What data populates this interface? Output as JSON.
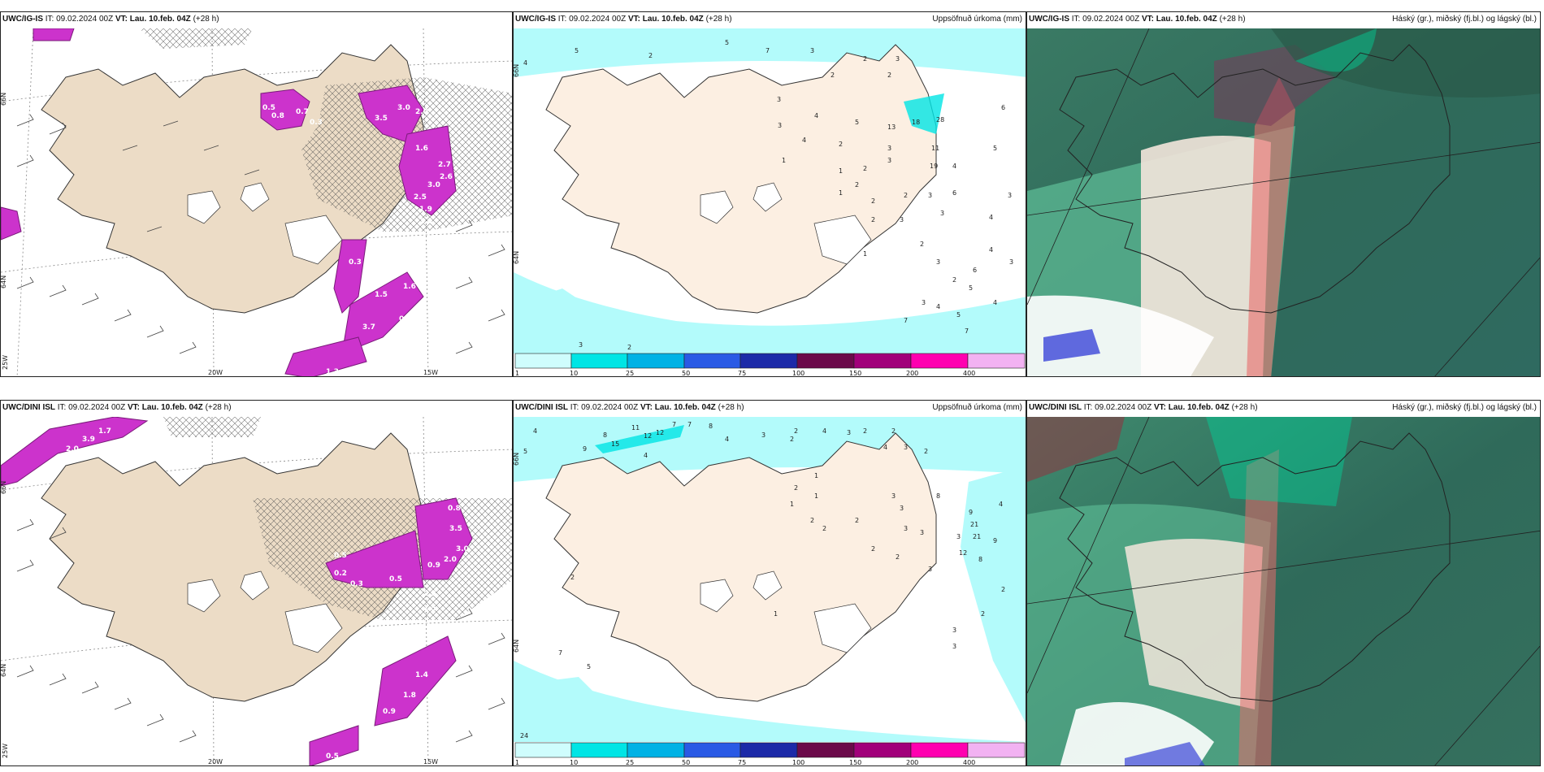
{
  "rows": [
    {
      "model": "UWC/IG-IS",
      "panels": [
        {
          "kind": "precip-type",
          "header": {
            "model": "UWC/IG-IS",
            "it_label": "IT:",
            "it_value": "09.02.2024 00Z",
            "vt_label": "VT:",
            "vt_value": "Lau. 10.feb. 04Z",
            "lead": "(+28 h)"
          },
          "right_title": "",
          "lat_labels": [
            "66N",
            "64N"
          ],
          "lon_labels": [
            "20W",
            "15W",
            "25W"
          ],
          "value_labels": [
            "0.5",
            "0.8",
            "0.7",
            "0.3",
            "3.0",
            "3.5",
            "2.0",
            "1.6",
            "2.7",
            "2.6",
            "3.0",
            "2.5",
            "1.9",
            "1.6",
            "0.3",
            "1.5",
            "1.6",
            "3.7",
            "0.2",
            "1.3"
          ]
        },
        {
          "kind": "accum-precip",
          "header": {
            "model": "UWC/IG-IS",
            "it_label": "IT:",
            "it_value": "09.02.2024 00Z",
            "vt_label": "VT:",
            "vt_value": "Lau. 10.feb. 04Z",
            "lead": "(+28 h)"
          },
          "right_title": "Uppsöfnuð úrkoma (mm)",
          "lat_labels": [
            "66N",
            "64N"
          ],
          "station_values": [
            "5",
            "2",
            "5",
            "7",
            "3",
            "2",
            "3",
            "4",
            "2",
            "2",
            "6",
            "3",
            "4",
            "3",
            "5",
            "13",
            "18",
            "28",
            "4",
            "2",
            "3",
            "1",
            "1",
            "2",
            "3",
            "11",
            "5",
            "2",
            "1",
            "2",
            "2",
            "3",
            "6",
            "19",
            "4",
            "3",
            "2",
            "3",
            "3",
            "4",
            "2",
            "4",
            "3",
            "1",
            "3",
            "2",
            "5",
            "6",
            "4",
            "3",
            "4",
            "5",
            "7",
            "7",
            "3",
            "2"
          ],
          "colorbar": {
            "ticks": [
              "1",
              "10",
              "25",
              "50",
              "75",
              "100",
              "150",
              "200",
              "400"
            ],
            "colors": [
              "#cffdfd",
              "#00e5e5",
              "#00b2e5",
              "#2a5ae5",
              "#1c2aa8",
              "#6b0a4a",
              "#a1007a",
              "#ff00b0",
              "#f2b2f2"
            ]
          }
        },
        {
          "kind": "cloud-cover",
          "header": {
            "model": "UWC/IG-IS",
            "it_label": "IT:",
            "it_value": "09.02.2024 00Z",
            "vt_label": "VT:",
            "vt_value": "Lau. 10.feb. 04Z",
            "lead": "(+28 h)"
          },
          "right_title": "Háský (gr.), miðský (fj.bl.) og lágský (bl.)"
        }
      ]
    },
    {
      "model": "UWC/DINI ISL",
      "panels": [
        {
          "kind": "precip-type",
          "header": {
            "model": "UWC/DINI ISL",
            "it_label": "IT:",
            "it_value": "09.02.2024 00Z",
            "vt_label": "VT:",
            "vt_value": "Lau. 10.feb. 04Z",
            "lead": "(+28 h)"
          },
          "right_title": "",
          "lat_labels": [
            "66N",
            "64N"
          ],
          "lon_labels": [
            "20W",
            "15W",
            "25W"
          ],
          "value_labels": [
            "1.7",
            "3.9",
            "2.0",
            "0.5",
            "0.2",
            "0.3",
            "0.5",
            "0.9",
            "2.5",
            "1.5",
            "3.5",
            "3.0",
            "2.0",
            "0.8",
            "1.4",
            "1.8",
            "0.9",
            "0.5"
          ]
        },
        {
          "kind": "accum-precip",
          "header": {
            "model": "UWC/DINI ISL",
            "it_label": "IT:",
            "it_value": "09.02.2024 00Z",
            "vt_label": "VT:",
            "vt_value": "Lau. 10.feb. 04Z",
            "lead": "(+28 h)"
          },
          "right_title": "Uppsöfnuð úrkoma (mm)",
          "lat_labels": [
            "66N",
            "64N"
          ],
          "station_values": [
            "4",
            "5",
            "8",
            "11",
            "7",
            "7",
            "8",
            "9",
            "15",
            "12",
            "12",
            "4",
            "4",
            "3",
            "2",
            "4",
            "3",
            "2",
            "2",
            "2",
            "4",
            "3",
            "2",
            "1",
            "2",
            "1",
            "1",
            "2",
            "2",
            "2",
            "3",
            "3",
            "8",
            "9",
            "4",
            "21",
            "21",
            "9",
            "3",
            "12",
            "8",
            "3",
            "3",
            "2",
            "2",
            "3",
            "2",
            "2",
            "7",
            "5",
            "3",
            "3",
            "24",
            "2",
            "1"
          ],
          "colorbar": {
            "ticks": [
              "1",
              "10",
              "25",
              "50",
              "75",
              "100",
              "150",
              "200",
              "400"
            ],
            "colors": [
              "#cffdfd",
              "#00e5e5",
              "#00b2e5",
              "#2a5ae5",
              "#1c2aa8",
              "#6b0a4a",
              "#a1007a",
              "#ff00b0",
              "#f2b2f2"
            ]
          }
        },
        {
          "kind": "cloud-cover",
          "header": {
            "model": "UWC/DINI ISL",
            "it_label": "IT:",
            "it_value": "09.02.2024 00Z",
            "vt_label": "VT:",
            "vt_value": "Lau. 10.feb. 04Z",
            "lead": "(+28 h)"
          },
          "right_title": "Háský (gr.), miðský (fj.bl.) og lágský (bl.)"
        }
      ]
    }
  ]
}
